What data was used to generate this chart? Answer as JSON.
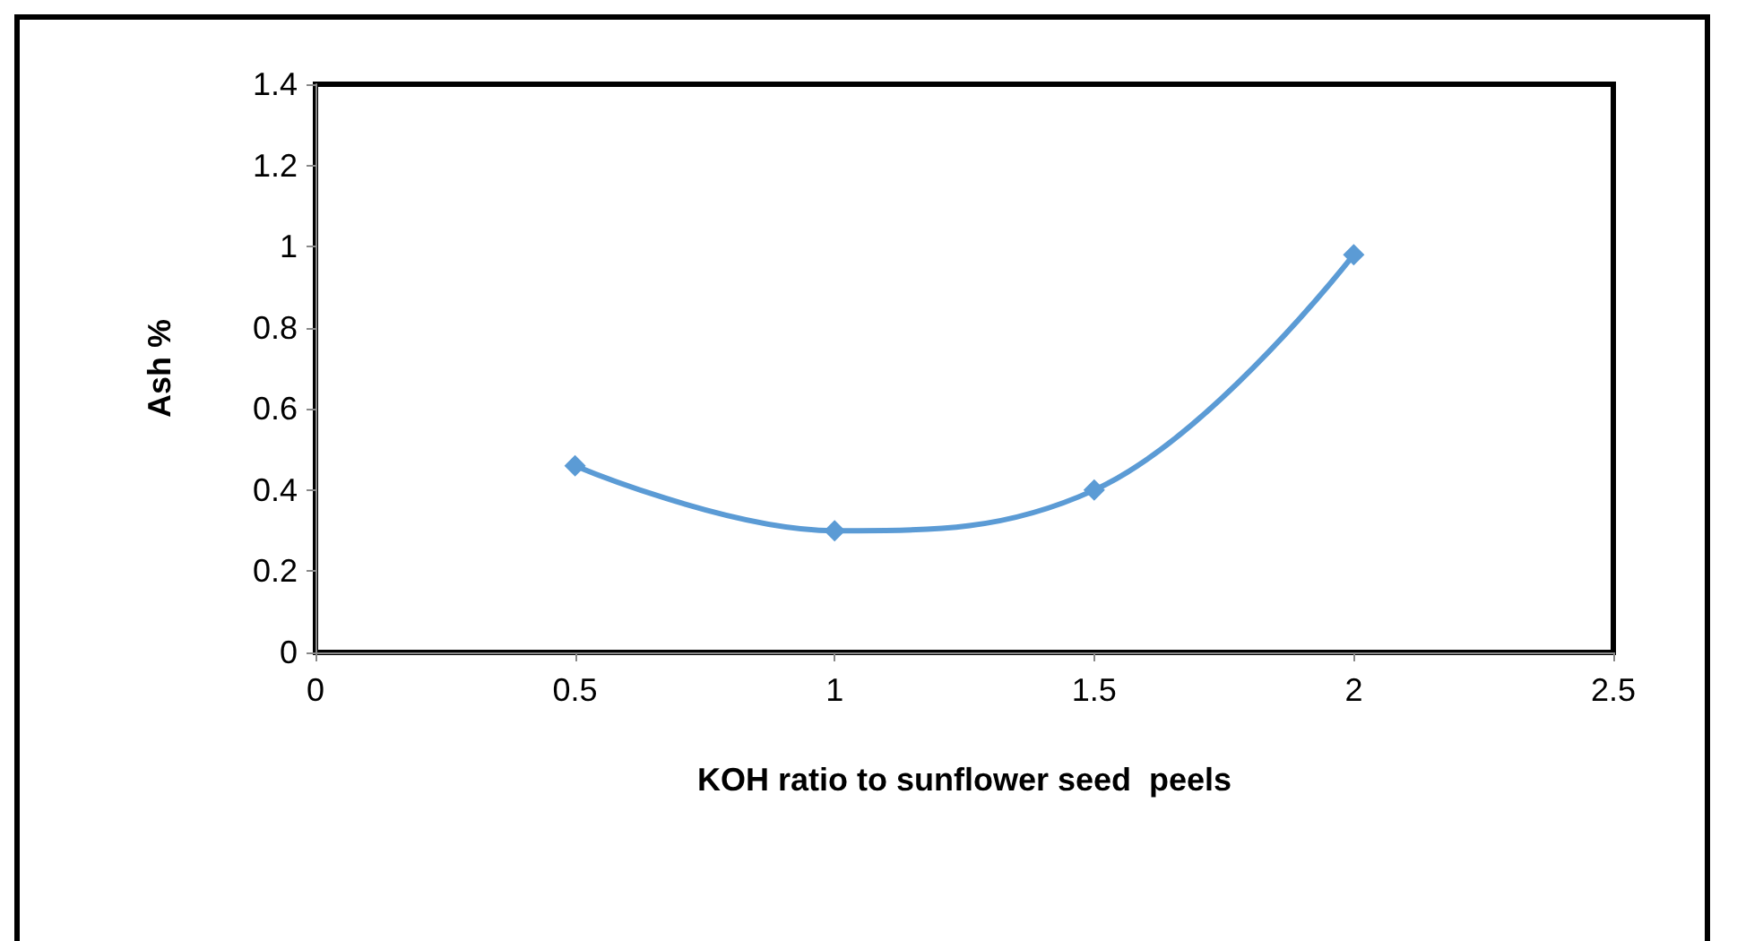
{
  "chart_data": {
    "type": "line",
    "xlabel": "KOH ratio to sunflower seed  peels",
    "ylabel": "Ash %",
    "x": [
      0.5,
      1,
      1.5,
      2
    ],
    "series": [
      {
        "color": "#5b9bd5",
        "values": [
          0.46,
          0.3,
          0.4,
          0.98
        ]
      }
    ],
    "xlim": [
      0,
      2.5
    ],
    "xticks": [
      0,
      0.5,
      1,
      1.5,
      2,
      2.5
    ],
    "ylim": [
      0,
      1.4
    ],
    "yticks": [
      0,
      0.2,
      0.4,
      0.6,
      0.8,
      1,
      1.2,
      1.4
    ],
    "grid": false,
    "marker": "diamond",
    "line_style": "solid"
  }
}
